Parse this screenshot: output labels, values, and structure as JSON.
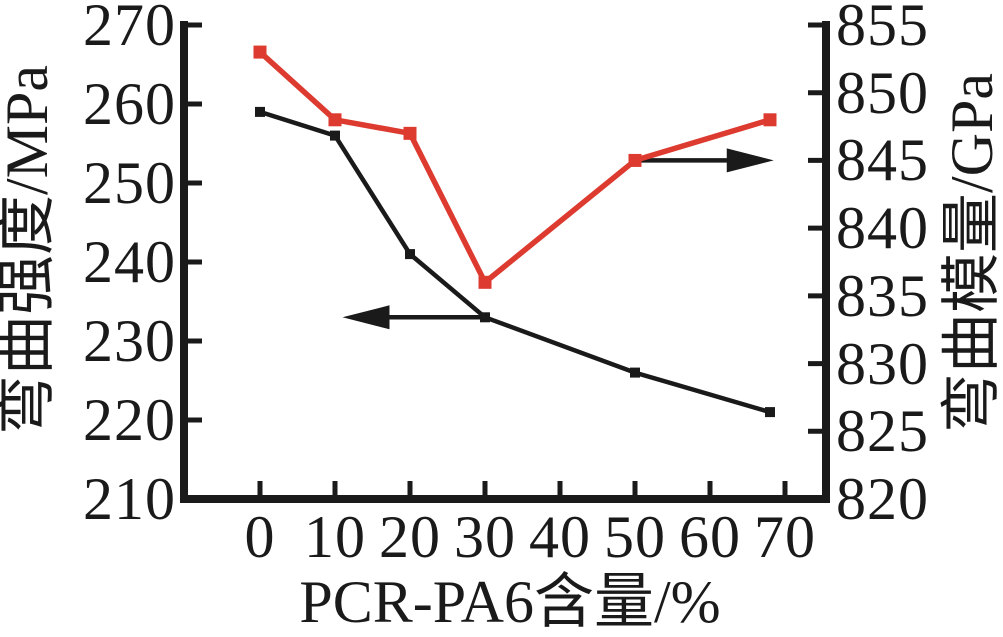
{
  "figure": {
    "background": "#ffffff",
    "axis_color": "#1a1a1a"
  },
  "chart_data": {
    "type": "line",
    "title": "",
    "xlabel": "PCR-PA6含量/%",
    "x_ticks": [
      0,
      10,
      20,
      30,
      40,
      50,
      60,
      70
    ],
    "x_tick_range": [
      0,
      70
    ],
    "grid": false,
    "legend": "none",
    "left_axis": {
      "label": "弯曲强度/MPa",
      "min": 210,
      "max": 270,
      "ticks": [
        270,
        260,
        250,
        240,
        230,
        220,
        210
      ]
    },
    "right_axis": {
      "label": "弯曲模量/GPa",
      "min": 820,
      "max": 855,
      "ticks": [
        855,
        850,
        845,
        840,
        835,
        830,
        825,
        820
      ]
    },
    "series": [
      {
        "name": "弯曲强度",
        "axis": "left",
        "color": "#1a1a1a",
        "marker": "square",
        "x": [
          0,
          10,
          20,
          30,
          50,
          68
        ],
        "y": [
          259,
          256,
          241,
          233,
          226,
          221
        ]
      },
      {
        "name": "弯曲模量",
        "axis": "right",
        "color": "#dd3a30",
        "marker": "square",
        "x": [
          0,
          10,
          20,
          30,
          50,
          68
        ],
        "y": [
          853,
          848,
          847,
          836,
          845,
          848
        ]
      }
    ],
    "annotations": [
      {
        "type": "arrow",
        "direction": "left",
        "axis": "left",
        "y": 233,
        "x_from": 30,
        "x_to": 11,
        "color": "#1a1a1a"
      },
      {
        "type": "arrow",
        "direction": "right",
        "axis": "right",
        "y": 845,
        "x_from": 50,
        "x_to": 68.5,
        "color": "#1a1a1a"
      }
    ]
  }
}
